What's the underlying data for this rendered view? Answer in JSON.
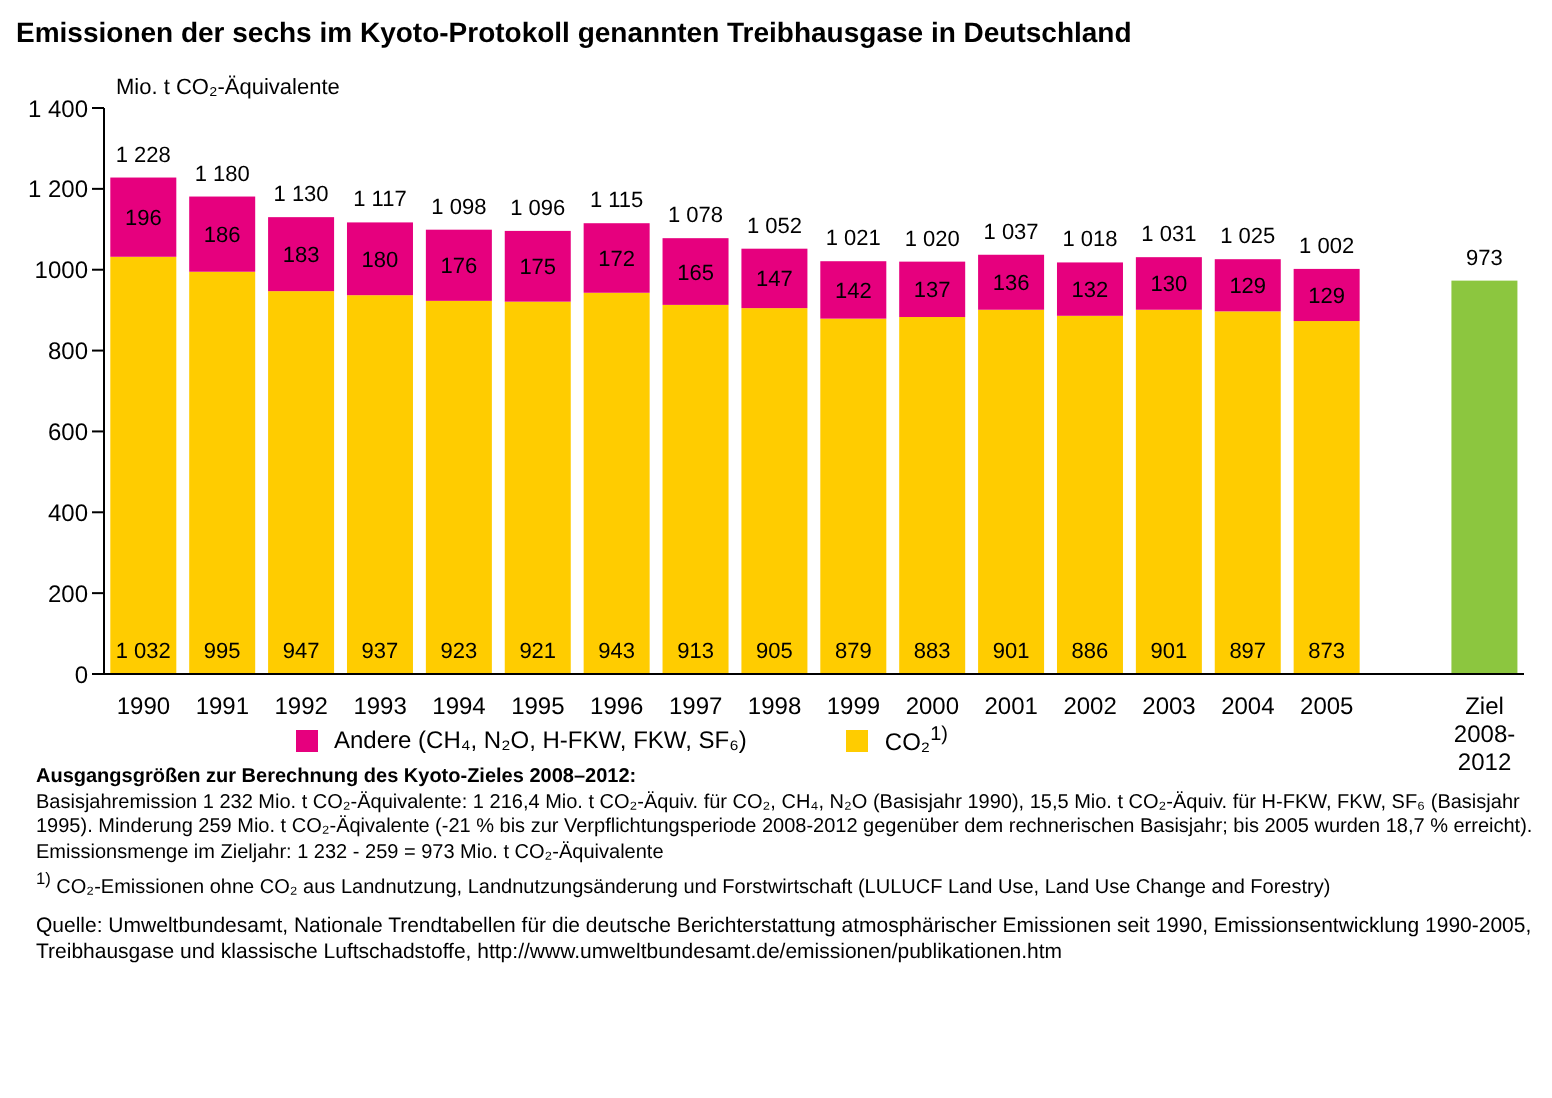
{
  "chart_data": {
    "type": "bar",
    "title": "Emissionen der sechs im Kyoto-Protokoll genannten Treibhausgase in Deutschland",
    "ylabel": "Mio. t CO₂-Äquivalente",
    "categories": [
      "1990",
      "1991",
      "1992",
      "1993",
      "1994",
      "1995",
      "1996",
      "1997",
      "1998",
      "1999",
      "2000",
      "2001",
      "2002",
      "2003",
      "2004",
      "2005",
      null,
      "Ziel 2008-2012"
    ],
    "stacked": true,
    "series": [
      {
        "name": "CO₂$^{1)}$",
        "color": "#ffcc00",
        "values": [
          1032,
          995,
          947,
          937,
          923,
          921,
          943,
          913,
          905,
          879,
          883,
          901,
          886,
          901,
          897,
          873,
          null,
          null
        ],
        "value_labels": [
          "1 032",
          "995",
          "947",
          "937",
          "923",
          "921",
          "943",
          "913",
          "905",
          "879",
          "883",
          "901",
          "886",
          "901",
          "897",
          "873",
          null,
          null
        ]
      },
      {
        "name": "Andere (CH₄, N₂O, H-FKW, FKW, SF₆)",
        "color": "#e6007e",
        "values": [
          196,
          186,
          183,
          180,
          176,
          175,
          172,
          165,
          147,
          142,
          137,
          136,
          132,
          130,
          129,
          129,
          null,
          null
        ],
        "value_labels": [
          "196",
          "186",
          "183",
          "180",
          "176",
          "175",
          "172",
          "165",
          "147",
          "142",
          "137",
          "136",
          "132",
          "130",
          "129",
          "129",
          null,
          null
        ]
      },
      {
        "color": "#8cc63f",
        "values": [
          null,
          null,
          null,
          null,
          null,
          null,
          null,
          null,
          null,
          null,
          null,
          null,
          null,
          null,
          null,
          null,
          null,
          973
        ],
        "value_labels": [
          null,
          null,
          null,
          null,
          null,
          null,
          null,
          null,
          null,
          null,
          null,
          null,
          null,
          null,
          null,
          null,
          null,
          "973"
        ]
      }
    ],
    "totals": [
      "1 228",
      "1 180",
      "1 130",
      "1 117",
      "1 098",
      "1 096",
      "1 115",
      "1 078",
      "1 052",
      "1 021",
      "1 020",
      "1 037",
      "1 018",
      "1 031",
      "1 025",
      "1 002",
      null,
      null
    ],
    "ylim": [
      0,
      1400
    ],
    "yticks": [
      0,
      200,
      400,
      600,
      800,
      1000,
      {
        "value": 1200,
        "label": "1 200"
      },
      {
        "value": 1400,
        "label": "1 400"
      }
    ],
    "grid": false,
    "legend": "bottom",
    "annotations": [
      "Ausgangsgrößen zur Berechnung des Kyoto-Zieles 2008–2012:",
      "Basisjahremission 1 232 Mio. t CO₂-Äquivalente: 1 216,4 Mio. t CO₂-Äquiv. für CO₂, CH₄, N₂O (Basisjahr 1990), 15,5 Mio. t CO₂-Äquiv. für H-FKW, FKW, SF₆ (Basisjahr 1995). Minderung 259 Mio. t CO₂-Äqivalente (-21 % bis zur Verpflichtungsperiode 2008-2012 gegenüber dem rechnerischen Basisjahr; bis 2005 wurden 18,7 % erreicht). Emissionsmenge im Zieljahr: 1 232 - 259 = 973 Mio. t CO₂-Äquivalente",
      "$^{1)}$ CO₂-Emissionen ohne CO₂ aus Landnutzung, Landnutzungsänderung und Forstwirtschaft (LULUCF Land Use, Land Use Change and Forestry)",
      "Quelle: Umweltbundesamt, Nationale Trendtabellen für die deutsche Berichterstattung atmosphärischer Emissionen seit 1990, Emissionsentwicklung 1990-2005, Treibhausgase und klassische Luftschadstoffe, http://www.umweltbundesamt.de/emissionen/publikationen.htm"
    ]
  }
}
